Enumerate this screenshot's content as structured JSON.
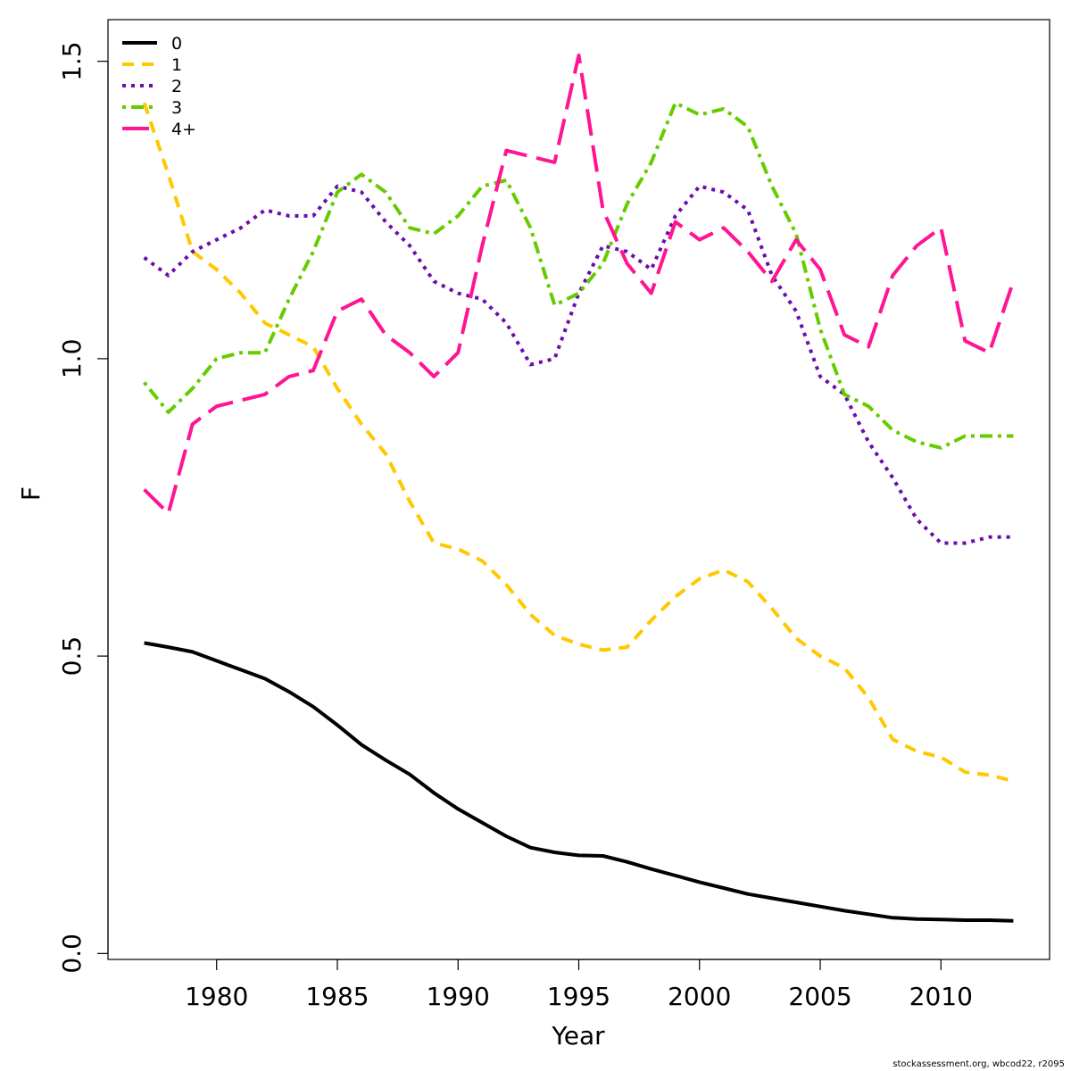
{
  "chart_data": {
    "type": "line",
    "xlabel": "Year",
    "ylabel": "F",
    "xlim": [
      1975.5,
      2014.5
    ],
    "ylim": [
      -0.01,
      1.57
    ],
    "xticks": [
      1980,
      1985,
      1990,
      1995,
      2000,
      2005,
      2010
    ],
    "yticks": [
      "0.0",
      "0.5",
      "1.0",
      "1.5"
    ],
    "grid": false,
    "legend_position": "top-left",
    "credit": "stockassessment.org, wbcod22, r2095",
    "x": [
      1977,
      1978,
      1979,
      1980,
      1981,
      1982,
      1983,
      1984,
      1985,
      1986,
      1987,
      1988,
      1989,
      1990,
      1991,
      1992,
      1993,
      1994,
      1995,
      1996,
      1997,
      1998,
      1999,
      2000,
      2001,
      2002,
      2003,
      2004,
      2005,
      2006,
      2007,
      2008,
      2009,
      2010,
      2011,
      2012,
      2013
    ],
    "series": [
      {
        "name": "0",
        "color": "#000000",
        "dash": "solid",
        "values": [
          0.522,
          0.515,
          0.507,
          0.492,
          0.477,
          0.462,
          0.44,
          0.415,
          0.384,
          0.351,
          0.325,
          0.301,
          0.27,
          0.243,
          0.22,
          0.197,
          0.178,
          0.17,
          0.165,
          0.164,
          0.154,
          0.142,
          0.131,
          0.12,
          0.11,
          0.1,
          0.093,
          0.086,
          0.079,
          0.072,
          0.066,
          0.06,
          0.058,
          0.057,
          0.056,
          0.056,
          0.055
        ]
      },
      {
        "name": "1",
        "color": "#ffc800",
        "dash": "dashed",
        "values": [
          1.43,
          1.31,
          1.18,
          1.15,
          1.11,
          1.06,
          1.04,
          1.02,
          0.95,
          0.89,
          0.84,
          0.76,
          0.69,
          0.68,
          0.66,
          0.62,
          0.57,
          0.535,
          0.52,
          0.51,
          0.515,
          0.56,
          0.6,
          0.63,
          0.645,
          0.625,
          0.58,
          0.53,
          0.5,
          0.48,
          0.43,
          0.36,
          0.34,
          0.33,
          0.305,
          0.3,
          0.29
        ]
      },
      {
        "name": "2",
        "color": "#6a0dad",
        "dash": "dotted",
        "values": [
          1.17,
          1.14,
          1.18,
          1.2,
          1.22,
          1.25,
          1.24,
          1.24,
          1.29,
          1.28,
          1.23,
          1.19,
          1.13,
          1.11,
          1.1,
          1.06,
          0.99,
          1.0,
          1.11,
          1.19,
          1.18,
          1.15,
          1.24,
          1.29,
          1.28,
          1.25,
          1.14,
          1.08,
          0.97,
          0.94,
          0.86,
          0.8,
          0.73,
          0.69,
          0.69,
          0.7,
          0.7
        ]
      },
      {
        "name": "3",
        "color": "#66cc00",
        "dash": "dashdot",
        "values": [
          0.96,
          0.91,
          0.95,
          1.0,
          1.01,
          1.01,
          1.1,
          1.18,
          1.28,
          1.31,
          1.28,
          1.22,
          1.21,
          1.24,
          1.29,
          1.3,
          1.22,
          1.09,
          1.11,
          1.16,
          1.26,
          1.33,
          1.43,
          1.41,
          1.42,
          1.39,
          1.29,
          1.21,
          1.05,
          0.94,
          0.92,
          0.88,
          0.86,
          0.85,
          0.87,
          0.87,
          0.87
        ]
      },
      {
        "name": "4+",
        "color": "#ff1493",
        "dash": "longdash",
        "values": [
          0.78,
          0.74,
          0.89,
          0.92,
          0.93,
          0.94,
          0.97,
          0.98,
          1.08,
          1.1,
          1.04,
          1.01,
          0.97,
          1.01,
          1.19,
          1.35,
          1.34,
          1.33,
          1.51,
          1.25,
          1.16,
          1.11,
          1.23,
          1.2,
          1.22,
          1.18,
          1.13,
          1.2,
          1.15,
          1.04,
          1.02,
          1.14,
          1.19,
          1.22,
          1.03,
          1.01,
          1.13
        ]
      }
    ]
  }
}
